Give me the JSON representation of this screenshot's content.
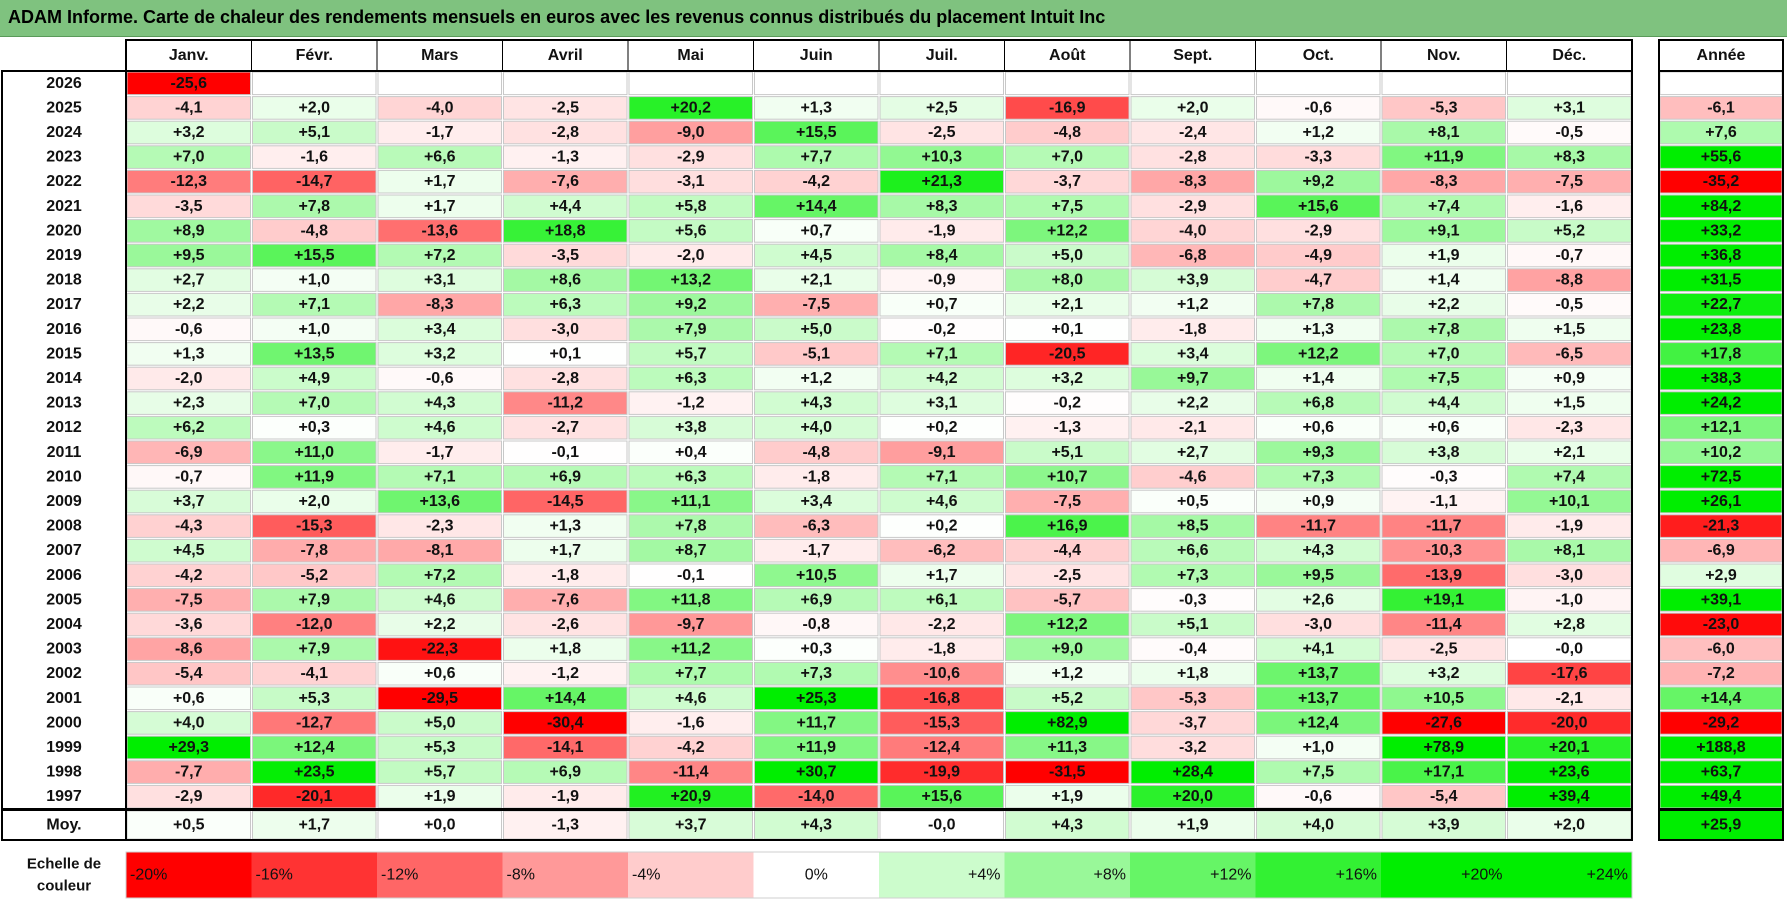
{
  "title": "ADAM Informe. Carte de chaleur des rendements mensuels en euros avec les revenus connus distribués du placement Intuit Inc",
  "colors": {
    "neg_max": "#ff0000",
    "pos_max": "#00ee00",
    "neutral": "#ffffff",
    "header_bg": "#7fc27f"
  },
  "chart_data": {
    "type": "heatmap",
    "title": "ADAM Informe. Carte de chaleur des rendements mensuels en euros avec les revenus connus distribués du placement Intuit Inc",
    "months": [
      "Janv.",
      "Févr.",
      "Mars",
      "Avril",
      "Mai",
      "Juin",
      "Juil.",
      "Août",
      "Sept.",
      "Oct.",
      "Nov.",
      "Déc."
    ],
    "year_label": "Année",
    "rows": [
      {
        "year": "2026",
        "values": [
          "-25,6",
          "",
          "",
          "",
          "",
          "",
          "",
          "",
          "",
          "",
          "",
          ""
        ],
        "annual": ""
      },
      {
        "year": "2025",
        "values": [
          "-4,1",
          "+2,0",
          "-4,0",
          "-2,5",
          "+20,2",
          "+1,3",
          "+2,5",
          "-16,9",
          "+2,0",
          "-0,6",
          "-5,3",
          "+3,1"
        ],
        "annual": "-6,1"
      },
      {
        "year": "2024",
        "values": [
          "+3,2",
          "+5,1",
          "-1,7",
          "-2,8",
          "-9,0",
          "+15,5",
          "-2,5",
          "-4,8",
          "-2,4",
          "+1,2",
          "+8,1",
          "-0,5"
        ],
        "annual": "+7,6"
      },
      {
        "year": "2023",
        "values": [
          "+7,0",
          "-1,6",
          "+6,6",
          "-1,3",
          "-2,9",
          "+7,7",
          "+10,3",
          "+7,0",
          "-2,8",
          "-3,3",
          "+11,9",
          "+8,3"
        ],
        "annual": "+55,6"
      },
      {
        "year": "2022",
        "values": [
          "-12,3",
          "-14,7",
          "+1,7",
          "-7,6",
          "-3,1",
          "-4,2",
          "+21,3",
          "-3,7",
          "-8,3",
          "+9,2",
          "-8,3",
          "-7,5"
        ],
        "annual": "-35,2"
      },
      {
        "year": "2021",
        "values": [
          "-3,5",
          "+7,8",
          "+1,7",
          "+4,4",
          "+5,8",
          "+14,4",
          "+8,3",
          "+7,5",
          "-2,9",
          "+15,6",
          "+7,4",
          "-1,6"
        ],
        "annual": "+84,2"
      },
      {
        "year": "2020",
        "values": [
          "+8,9",
          "-4,8",
          "-13,6",
          "+18,8",
          "+5,6",
          "+0,7",
          "-1,9",
          "+12,2",
          "-4,0",
          "-2,9",
          "+9,1",
          "+5,2"
        ],
        "annual": "+33,2"
      },
      {
        "year": "2019",
        "values": [
          "+9,5",
          "+15,5",
          "+7,2",
          "-3,5",
          "-2,0",
          "+4,5",
          "+8,4",
          "+5,0",
          "-6,8",
          "-4,9",
          "+1,9",
          "-0,7"
        ],
        "annual": "+36,8"
      },
      {
        "year": "2018",
        "values": [
          "+2,7",
          "+1,0",
          "+3,1",
          "+8,6",
          "+13,2",
          "+2,1",
          "-0,9",
          "+8,0",
          "+3,9",
          "-4,7",
          "+1,4",
          "-8,8"
        ],
        "annual": "+31,5"
      },
      {
        "year": "2017",
        "values": [
          "+2,2",
          "+7,1",
          "-8,3",
          "+6,3",
          "+9,2",
          "-7,5",
          "+0,7",
          "+2,1",
          "+1,2",
          "+7,8",
          "+2,2",
          "-0,5"
        ],
        "annual": "+22,7"
      },
      {
        "year": "2016",
        "values": [
          "-0,6",
          "+1,0",
          "+3,4",
          "-3,0",
          "+7,9",
          "+5,0",
          "-0,2",
          "+0,1",
          "-1,8",
          "+1,3",
          "+7,8",
          "+1,5"
        ],
        "annual": "+23,8"
      },
      {
        "year": "2015",
        "values": [
          "+1,3",
          "+13,5",
          "+3,2",
          "+0,1",
          "+5,7",
          "-5,1",
          "+7,1",
          "-20,5",
          "+3,4",
          "+12,2",
          "+7,0",
          "-6,5"
        ],
        "annual": "+17,8"
      },
      {
        "year": "2014",
        "values": [
          "-2,0",
          "+4,9",
          "-0,6",
          "-2,8",
          "+6,3",
          "+1,2",
          "+4,2",
          "+3,2",
          "+9,7",
          "+1,4",
          "+7,5",
          "+0,9"
        ],
        "annual": "+38,3"
      },
      {
        "year": "2013",
        "values": [
          "+2,3",
          "+7,0",
          "+4,3",
          "-11,2",
          "-1,2",
          "+4,3",
          "+3,1",
          "-0,2",
          "+2,2",
          "+6,8",
          "+4,4",
          "+1,5"
        ],
        "annual": "+24,2"
      },
      {
        "year": "2012",
        "values": [
          "+6,2",
          "+0,3",
          "+4,6",
          "-2,7",
          "+3,8",
          "+4,0",
          "+0,2",
          "-1,3",
          "-2,1",
          "+0,6",
          "+0,6",
          "-2,3"
        ],
        "annual": "+12,1"
      },
      {
        "year": "2011",
        "values": [
          "-6,9",
          "+11,0",
          "-1,7",
          "-0,1",
          "+0,4",
          "-4,8",
          "-9,1",
          "+5,1",
          "+2,7",
          "+9,3",
          "+3,8",
          "+2,1"
        ],
        "annual": "+10,2"
      },
      {
        "year": "2010",
        "values": [
          "-0,7",
          "+11,9",
          "+7,1",
          "+6,9",
          "+6,3",
          "-1,8",
          "+7,1",
          "+10,7",
          "-4,6",
          "+7,3",
          "-0,3",
          "+7,4"
        ],
        "annual": "+72,5"
      },
      {
        "year": "2009",
        "values": [
          "+3,7",
          "+2,0",
          "+13,6",
          "-14,5",
          "+11,1",
          "+3,4",
          "+4,6",
          "-7,5",
          "+0,5",
          "+0,9",
          "-1,1",
          "+10,1"
        ],
        "annual": "+26,1"
      },
      {
        "year": "2008",
        "values": [
          "-4,3",
          "-15,3",
          "-2,3",
          "+1,3",
          "+7,8",
          "-6,3",
          "+0,2",
          "+16,9",
          "+8,5",
          "-11,7",
          "-11,7",
          "-1,9"
        ],
        "annual": "-21,3"
      },
      {
        "year": "2007",
        "values": [
          "+4,5",
          "-7,8",
          "-8,1",
          "+1,7",
          "+8,7",
          "-1,7",
          "-6,2",
          "-4,4",
          "+6,6",
          "+4,3",
          "-10,3",
          "+8,1"
        ],
        "annual": "-6,9"
      },
      {
        "year": "2006",
        "values": [
          "-4,2",
          "-5,2",
          "+7,2",
          "-1,8",
          "-0,1",
          "+10,5",
          "+1,7",
          "-2,5",
          "+7,3",
          "+9,5",
          "-13,9",
          "-3,0"
        ],
        "annual": "+2,9"
      },
      {
        "year": "2005",
        "values": [
          "-7,5",
          "+7,9",
          "+4,6",
          "-7,6",
          "+11,8",
          "+6,9",
          "+6,1",
          "-5,7",
          "-0,3",
          "+2,6",
          "+19,1",
          "-1,0"
        ],
        "annual": "+39,1"
      },
      {
        "year": "2004",
        "values": [
          "-3,6",
          "-12,0",
          "+2,2",
          "-2,6",
          "-9,7",
          "-0,8",
          "-2,2",
          "+12,2",
          "+5,1",
          "-3,0",
          "-11,4",
          "+2,8"
        ],
        "annual": "-23,0"
      },
      {
        "year": "2003",
        "values": [
          "-8,6",
          "+7,9",
          "-22,3",
          "+1,8",
          "+11,2",
          "+0,3",
          "-1,8",
          "+9,0",
          "-0,4",
          "+4,1",
          "-2,5",
          "-0,0"
        ],
        "annual": "-6,0"
      },
      {
        "year": "2002",
        "values": [
          "-5,4",
          "-4,1",
          "+0,6",
          "-1,2",
          "+7,7",
          "+7,3",
          "-10,6",
          "+1,2",
          "+1,8",
          "+13,7",
          "+3,2",
          "-17,6"
        ],
        "annual": "-7,2"
      },
      {
        "year": "2001",
        "values": [
          "+0,6",
          "+5,3",
          "-29,5",
          "+14,4",
          "+4,6",
          "+25,3",
          "-16,8",
          "+5,2",
          "-5,3",
          "+13,7",
          "+10,5",
          "-2,1"
        ],
        "annual": "+14,4"
      },
      {
        "year": "2000",
        "values": [
          "+4,0",
          "-12,7",
          "+5,0",
          "-30,4",
          "-1,6",
          "+11,7",
          "-15,3",
          "+82,9",
          "-3,7",
          "+12,4",
          "-27,6",
          "-20,0"
        ],
        "annual": "-29,2"
      },
      {
        "year": "1999",
        "values": [
          "+29,3",
          "+12,4",
          "+5,3",
          "-14,1",
          "-4,2",
          "+11,9",
          "-12,4",
          "+11,3",
          "-3,2",
          "+1,0",
          "+78,9",
          "+20,1"
        ],
        "annual": "+188,8"
      },
      {
        "year": "1998",
        "values": [
          "-7,7",
          "+23,5",
          "+5,7",
          "+6,9",
          "-11,4",
          "+30,7",
          "-19,9",
          "-31,5",
          "+28,4",
          "+7,5",
          "+17,1",
          "+23,6"
        ],
        "annual": "+63,7"
      },
      {
        "year": "1997",
        "values": [
          "-2,9",
          "-20,1",
          "+1,9",
          "-1,9",
          "+20,9",
          "-14,0",
          "+15,6",
          "+1,9",
          "+20,0",
          "-0,6",
          "-5,4",
          "+39,4"
        ],
        "annual": "+49,4"
      }
    ],
    "average": {
      "label": "Moy.",
      "values": [
        "+0,5",
        "+1,7",
        "+0,0",
        "-1,3",
        "+3,7",
        "+4,3",
        "-0,0",
        "+4,3",
        "+1,9",
        "+4,0",
        "+3,9",
        "+2,0"
      ],
      "annual": "+25,9"
    },
    "scale": {
      "label_line1": "Echelle de",
      "label_line2": "couleur",
      "steps": [
        "-20%",
        "-16%",
        "-12%",
        "-8%",
        "-4%",
        "0%",
        "+4%",
        "+8%",
        "+12%",
        "+16%",
        "+20%",
        "+24%"
      ]
    }
  }
}
